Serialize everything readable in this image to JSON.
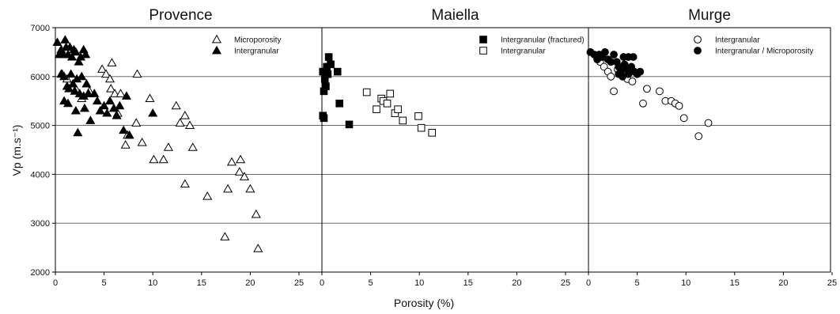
{
  "figure": {
    "ylabel": "Vp (m.s⁻¹)",
    "xlabel": "Porosity (%)",
    "y_ticks": [
      "2000",
      "3000",
      "4000",
      "5000",
      "6000",
      "7000"
    ],
    "x_ticks": [
      "0",
      "5",
      "10",
      "15",
      "20",
      "25"
    ]
  },
  "chart_data": [
    {
      "type": "scatter",
      "title": "Provence",
      "xlim": [
        0,
        25
      ],
      "ylim": [
        2000,
        7000
      ],
      "grid": "horizontal",
      "legend_position": "top-right",
      "series": [
        {
          "name": "Microporosity",
          "marker": "triangle-open",
          "points": [
            [
              0.7,
              6050
            ],
            [
              1.2,
              5950
            ],
            [
              2.1,
              5750
            ],
            [
              2.7,
              5550
            ],
            [
              3.5,
              5700
            ],
            [
              4.8,
              6150
            ],
            [
              5.2,
              6050
            ],
            [
              5.6,
              5950
            ],
            [
              5.8,
              6280
            ],
            [
              5.7,
              5750
            ],
            [
              6.1,
              5650
            ],
            [
              6.4,
              5250
            ],
            [
              6.7,
              5650
            ],
            [
              7.2,
              4600
            ],
            [
              7.4,
              4800
            ],
            [
              8.3,
              5050
            ],
            [
              8.4,
              6050
            ],
            [
              8.9,
              4650
            ],
            [
              9.7,
              5550
            ],
            [
              10.1,
              4300
            ],
            [
              11.1,
              4300
            ],
            [
              11.6,
              4550
            ],
            [
              12.4,
              5400
            ],
            [
              12.8,
              5050
            ],
            [
              13.3,
              5200
            ],
            [
              13.3,
              3800
            ],
            [
              13.8,
              5000
            ],
            [
              14.1,
              4550
            ],
            [
              15.6,
              3550
            ],
            [
              17.4,
              2720
            ],
            [
              17.7,
              3700
            ],
            [
              18.1,
              4250
            ],
            [
              18.9,
              4050
            ],
            [
              19.0,
              4300
            ],
            [
              19.4,
              3950
            ],
            [
              20.0,
              3700
            ],
            [
              20.6,
              3180
            ],
            [
              20.8,
              2480
            ]
          ]
        },
        {
          "name": "Intergranular",
          "marker": "triangle-filled",
          "points": [
            [
              0.2,
              6700
            ],
            [
              0.4,
              6450
            ],
            [
              0.6,
              6550
            ],
            [
              0.8,
              6450
            ],
            [
              1.0,
              6750
            ],
            [
              1.1,
              6600
            ],
            [
              1.3,
              6450
            ],
            [
              1.5,
              6600
            ],
            [
              1.7,
              6400
            ],
            [
              1.9,
              6550
            ],
            [
              2.1,
              6500
            ],
            [
              2.4,
              6300
            ],
            [
              2.6,
              6400
            ],
            [
              2.9,
              6550
            ],
            [
              3.1,
              6450
            ],
            [
              0.6,
              6050
            ],
            [
              0.9,
              6000
            ],
            [
              1.2,
              5800
            ],
            [
              1.4,
              5750
            ],
            [
              1.6,
              6050
            ],
            [
              1.8,
              5850
            ],
            [
              2.0,
              5700
            ],
            [
              2.2,
              5950
            ],
            [
              2.5,
              5650
            ],
            [
              2.7,
              6000
            ],
            [
              2.9,
              5600
            ],
            [
              3.2,
              5850
            ],
            [
              3.4,
              5650
            ],
            [
              0.9,
              5500
            ],
            [
              1.3,
              5450
            ],
            [
              2.1,
              5300
            ],
            [
              3.0,
              5350
            ],
            [
              3.6,
              5100
            ],
            [
              4.0,
              5650
            ],
            [
              4.3,
              5500
            ],
            [
              4.6,
              5300
            ],
            [
              5.0,
              5400
            ],
            [
              5.3,
              5250
            ],
            [
              5.6,
              5500
            ],
            [
              6.0,
              5350
            ],
            [
              6.3,
              5200
            ],
            [
              6.6,
              5400
            ],
            [
              7.0,
              4900
            ],
            [
              7.3,
              5600
            ],
            [
              7.6,
              4800
            ],
            [
              2.3,
              4850
            ],
            [
              10.0,
              5250
            ]
          ]
        }
      ]
    },
    {
      "type": "scatter",
      "title": "Maiella",
      "xlim": [
        0,
        25
      ],
      "ylim": [
        2000,
        7000
      ],
      "grid": "horizontal",
      "legend_position": "top-right",
      "series": [
        {
          "name": "Intergranular (fractured)",
          "marker": "square-filled",
          "points": [
            [
              0.1,
              6100
            ],
            [
              0.3,
              5950
            ],
            [
              0.5,
              6200
            ],
            [
              0.7,
              6400
            ],
            [
              0.9,
              6250
            ],
            [
              0.2,
              5700
            ],
            [
              0.4,
              5800
            ],
            [
              0.6,
              6050
            ],
            [
              0.1,
              5200
            ],
            [
              0.2,
              5150
            ],
            [
              1.6,
              6100
            ],
            [
              1.8,
              5450
            ],
            [
              2.8,
              5020
            ]
          ]
        },
        {
          "name": "Intergranular",
          "marker": "square-open",
          "points": [
            [
              4.6,
              5680
            ],
            [
              5.6,
              5330
            ],
            [
              6.1,
              5550
            ],
            [
              6.3,
              5500
            ],
            [
              6.7,
              5450
            ],
            [
              7.0,
              5650
            ],
            [
              7.5,
              5250
            ],
            [
              7.8,
              5330
            ],
            [
              8.3,
              5100
            ],
            [
              9.9,
              5190
            ],
            [
              10.2,
              4950
            ],
            [
              11.3,
              4850
            ]
          ]
        }
      ]
    },
    {
      "type": "scatter",
      "title": "Murge",
      "xlim": [
        0,
        25
      ],
      "ylim": [
        2000,
        7000
      ],
      "grid": "horizontal",
      "legend_position": "top-right",
      "series": [
        {
          "name": "Intergranular",
          "marker": "circle-open",
          "points": [
            [
              1.2,
              6300
            ],
            [
              1.6,
              6200
            ],
            [
              2.0,
              6100
            ],
            [
              2.3,
              6000
            ],
            [
              2.6,
              5700
            ],
            [
              3.0,
              6150
            ],
            [
              3.5,
              6100
            ],
            [
              4.0,
              5950
            ],
            [
              4.5,
              5900
            ],
            [
              5.0,
              6050
            ],
            [
              5.6,
              5450
            ],
            [
              6.0,
              5750
            ],
            [
              7.3,
              5700
            ],
            [
              7.9,
              5500
            ],
            [
              8.5,
              5500
            ],
            [
              8.9,
              5450
            ],
            [
              9.3,
              5400
            ],
            [
              9.8,
              5150
            ],
            [
              11.3,
              4780
            ],
            [
              12.3,
              5050
            ]
          ]
        },
        {
          "name": "Intergranular / Microporosity",
          "marker": "circle-filled",
          "points": [
            [
              0.2,
              6500
            ],
            [
              0.6,
              6450
            ],
            [
              0.9,
              6350
            ],
            [
              1.1,
              6450
            ],
            [
              1.4,
              6400
            ],
            [
              1.7,
              6500
            ],
            [
              2.0,
              6350
            ],
            [
              2.3,
              6300
            ],
            [
              2.6,
              6450
            ],
            [
              2.9,
              6300
            ],
            [
              3.1,
              6200
            ],
            [
              3.3,
              6100
            ],
            [
              3.5,
              6000
            ],
            [
              3.7,
              6250
            ],
            [
              3.9,
              6150
            ],
            [
              4.1,
              6050
            ],
            [
              4.4,
              6200
            ],
            [
              4.7,
              6100
            ],
            [
              5.0,
              6050
            ],
            [
              5.3,
              6100
            ],
            [
              3.6,
              6400
            ],
            [
              4.1,
              6400
            ],
            [
              4.6,
              6400
            ],
            [
              3.1,
              6050
            ],
            [
              4.3,
              6150
            ]
          ]
        }
      ]
    }
  ]
}
